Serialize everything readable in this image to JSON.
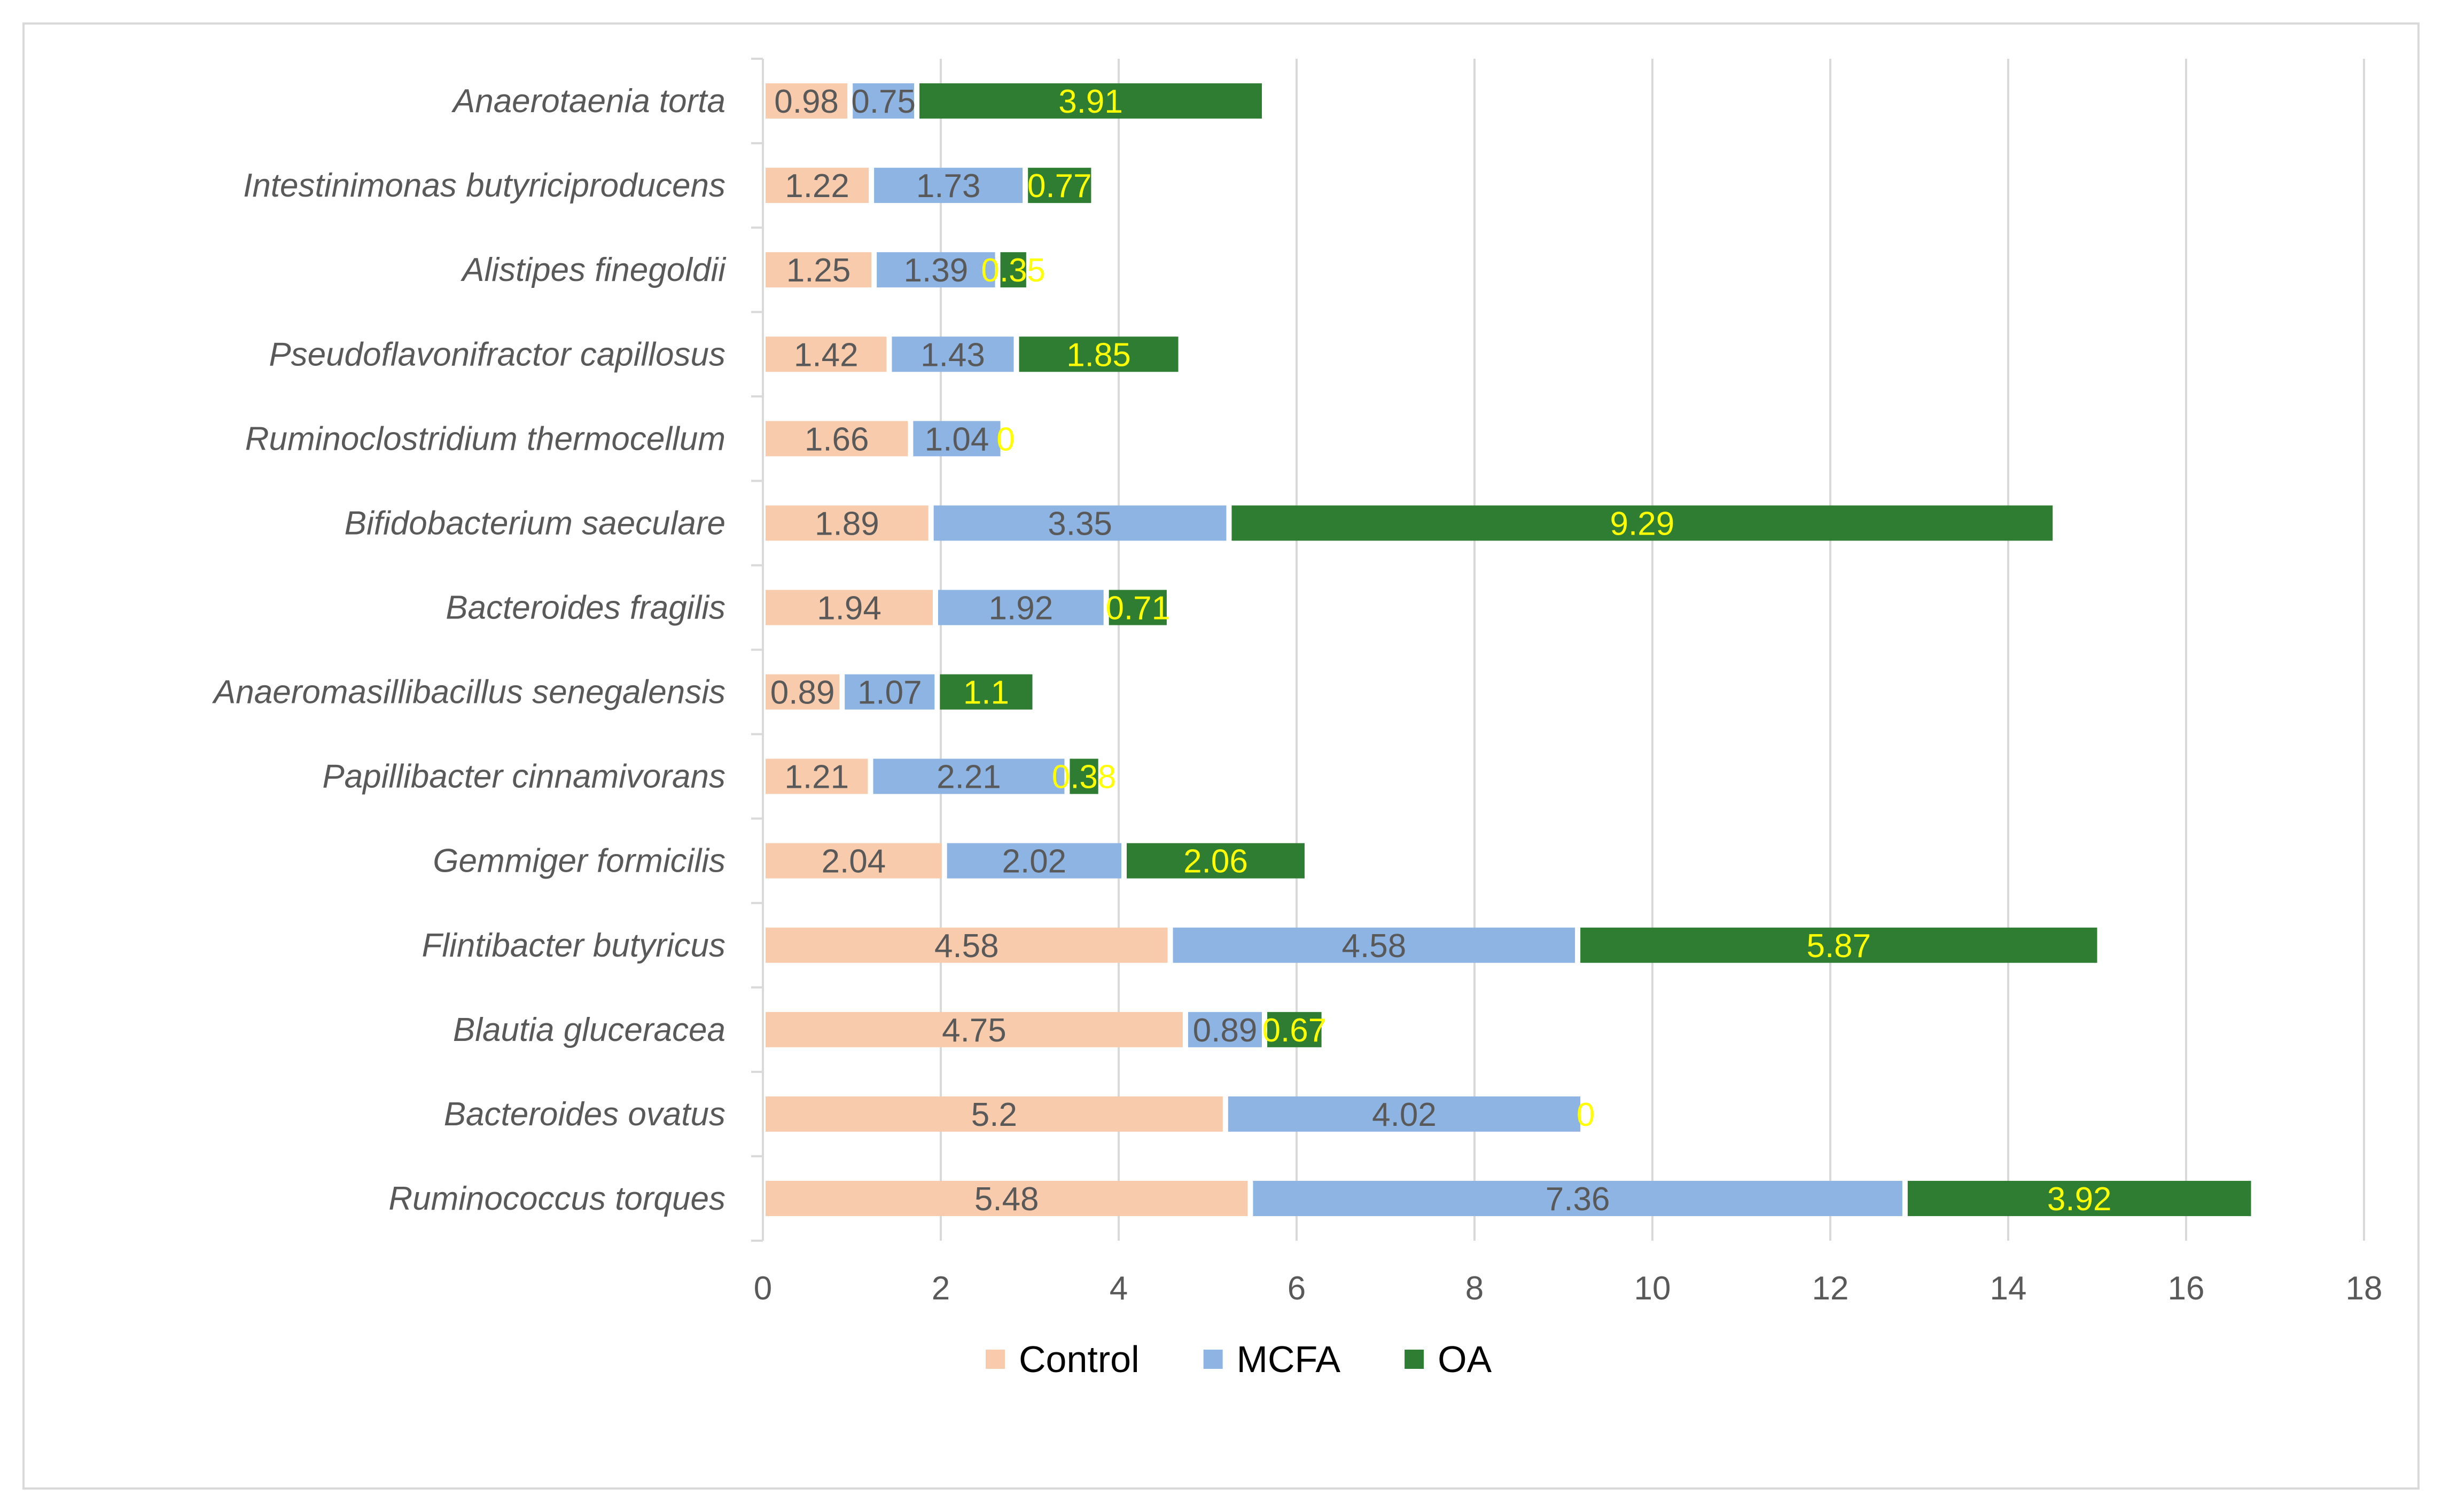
{
  "chart_data": {
    "type": "bar",
    "orientation": "horizontal",
    "stacked": true,
    "categories": [
      "Anaerotaenia torta",
      "Intestinimonas butyriciproducens",
      "Alistipes finegoldii",
      "Pseudoflavonifractor capillosus",
      "Ruminoclostridium thermocellum",
      "Bifidobacterium saeculare",
      "Bacteroides fragilis",
      "Anaeromasillibacillus senegalensis",
      "Papillibacter cinnamivorans",
      "Gemmiger formicilis",
      "Flintibacter butyricus",
      "Blautia gluceracea",
      "Bacteroides ovatus",
      "Ruminococcus torques"
    ],
    "series": [
      {
        "name": "Control",
        "color": "#f8cbad",
        "label_color": "#595959",
        "values": [
          0.98,
          1.22,
          1.25,
          1.42,
          1.66,
          1.89,
          1.94,
          0.89,
          1.21,
          2.04,
          4.58,
          4.75,
          5.2,
          5.48
        ]
      },
      {
        "name": "MCFA",
        "color": "#8eb4e3",
        "label_color": "#595959",
        "values": [
          0.75,
          1.73,
          1.39,
          1.43,
          1.04,
          3.35,
          1.92,
          1.07,
          2.21,
          2.02,
          4.58,
          0.89,
          4.02,
          7.36
        ]
      },
      {
        "name": "OA",
        "color": "#2e7d32",
        "label_color": "#ffff00",
        "values": [
          3.91,
          0.77,
          0.35,
          1.85,
          0,
          9.29,
          0.71,
          1.1,
          0.38,
          2.06,
          5.87,
          0.67,
          0,
          3.92
        ]
      }
    ],
    "x_ticks": [
      0,
      2,
      4,
      6,
      8,
      10,
      12,
      14,
      16,
      18
    ],
    "xlim": [
      0,
      18
    ],
    "grid": true,
    "legend_position": "bottom",
    "title": "",
    "xlabel": "",
    "ylabel": ""
  }
}
